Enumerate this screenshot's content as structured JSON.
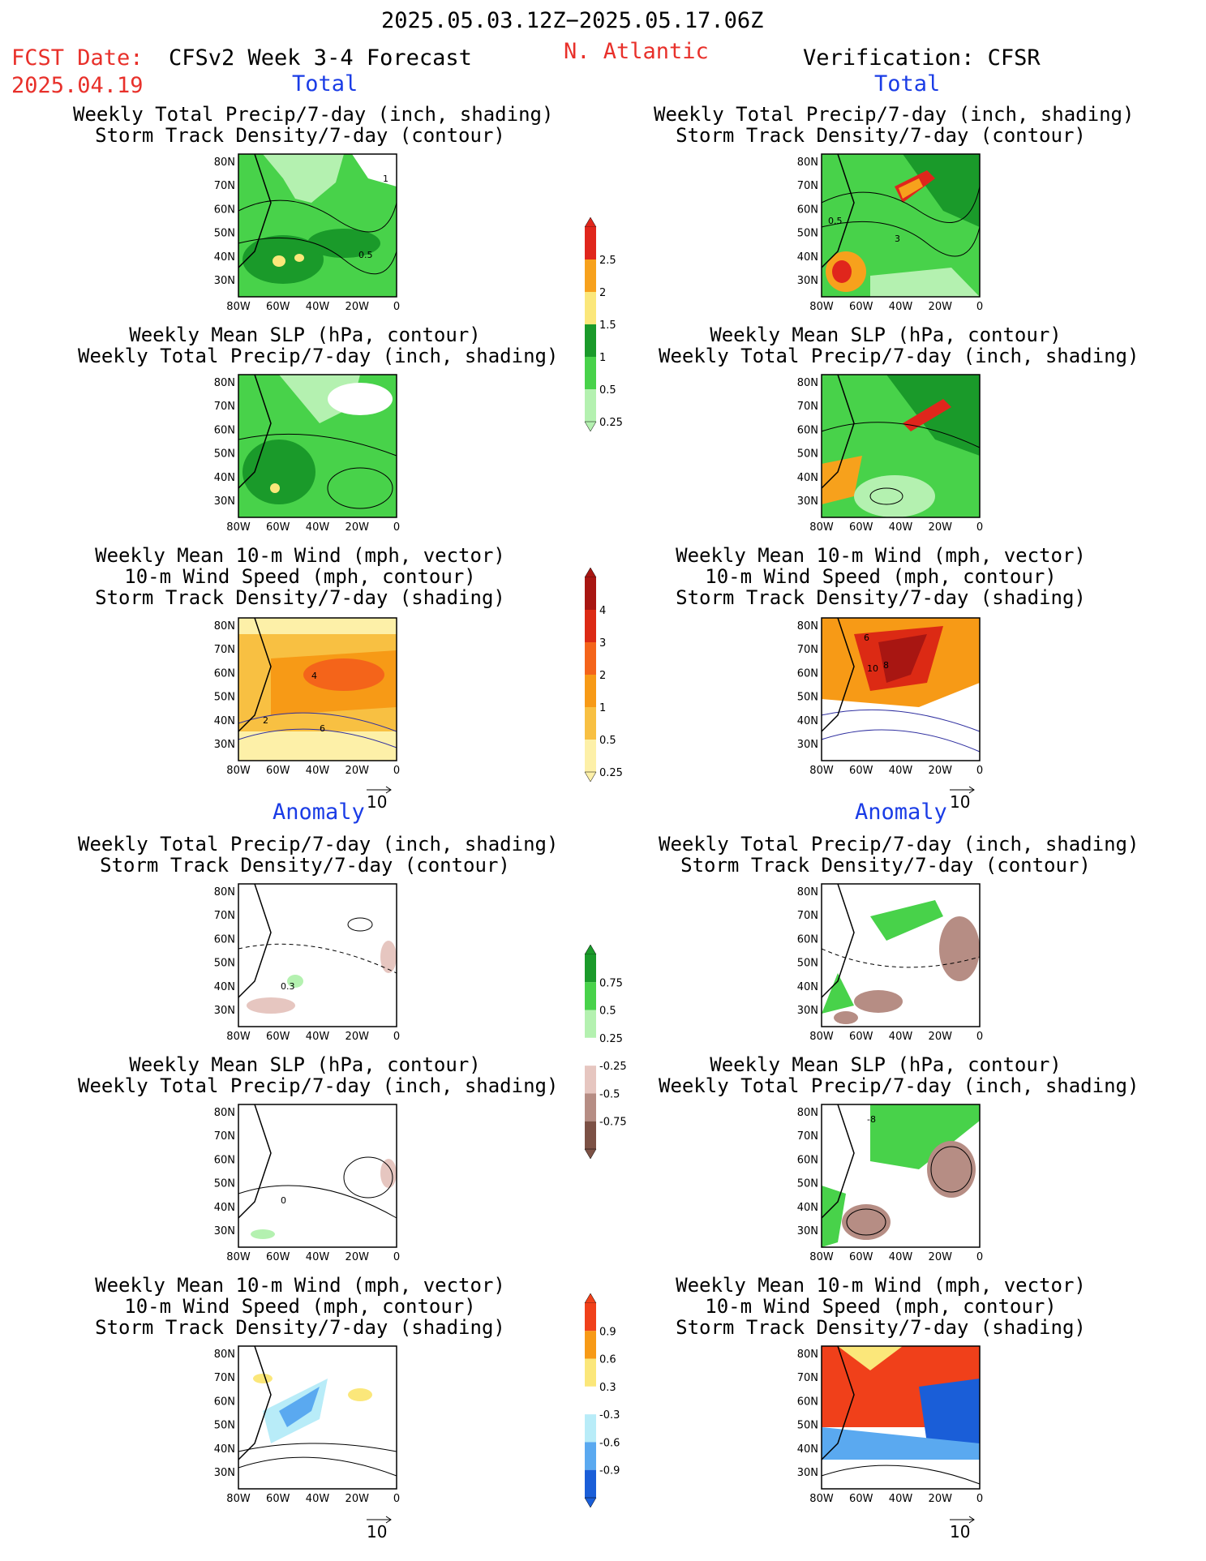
{
  "header": {
    "date_range": "2025.05.03.12Z−2025.05.17.06Z",
    "fcst_label": "FCST Date:",
    "fcst_date": "2025.04.19",
    "product": "CFSv2 Week 3-4 Forecast",
    "region": "N. Atlantic",
    "verification": "Verification: CFSR"
  },
  "sections": {
    "total": "Total",
    "anomaly": "Anomaly"
  },
  "panel_titles": {
    "precip_track": [
      "Weekly Total Precip/7-day (inch, shading)",
      "Storm Track Density/7-day (contour)"
    ],
    "slp_precip": [
      "Weekly Mean SLP (hPa, contour)",
      "Weekly Total Precip/7-day (inch, shading)"
    ],
    "wind_track": [
      "Weekly Mean 10-m Wind (mph, vector)",
      "10-m Wind Speed (mph, contour)",
      "Storm Track Density/7-day (shading)"
    ]
  },
  "axes": {
    "lat": [
      "80N",
      "70N",
      "60N",
      "50N",
      "40N",
      "30N"
    ],
    "lon": [
      "80W",
      "60W",
      "40W",
      "20W",
      "0"
    ]
  },
  "vector_ref": "10",
  "colorbars": {
    "precip_total": {
      "labels": [
        "2.5",
        "2",
        "1.5",
        "1",
        "0.5",
        "0.25"
      ],
      "colors": [
        "#e0261c",
        "#f7a11c",
        "#fbe77a",
        "#1a9a2a",
        "#48d24a",
        "#b4f1b0"
      ]
    },
    "track_total": {
      "labels": [
        "4",
        "3",
        "2",
        "1",
        "0.5",
        "0.25"
      ],
      "colors": [
        "#a81612",
        "#dc2a14",
        "#f4641a",
        "#f79a16",
        "#f8c042",
        "#fdf0a8"
      ]
    },
    "precip_anom": {
      "labels": [
        "0.75",
        "0.5",
        "0.25",
        "-0.25",
        "-0.5",
        "-0.75"
      ],
      "colors": [
        "#1a9a2a",
        "#48d24a",
        "#b4f1b0",
        "#ffffff",
        "#e6c6c0",
        "#b68d84",
        "#7c5145"
      ]
    },
    "track_anom": {
      "labels": [
        "0.9",
        "0.6",
        "0.3",
        "-0.3",
        "-0.6",
        "-0.9"
      ],
      "colors": [
        "#f0401a",
        "#f79a16",
        "#fbe77a",
        "#ffffff",
        "#b8ecf8",
        "#5aa9f0",
        "#1a5ed8"
      ]
    }
  },
  "contour_labels": {
    "fc_precip_total": [
      "1",
      "0.5"
    ],
    "vf_precip_total": [
      "0.5",
      "3"
    ],
    "fc_wind_total": [
      "4",
      "6",
      "2"
    ],
    "vf_wind_total": [
      "6",
      "10",
      "8"
    ],
    "fc_precip_anom": [
      "0.3"
    ],
    "fc_slp_anom": [
      "0"
    ],
    "vf_slp_anom": [
      "-8"
    ]
  }
}
